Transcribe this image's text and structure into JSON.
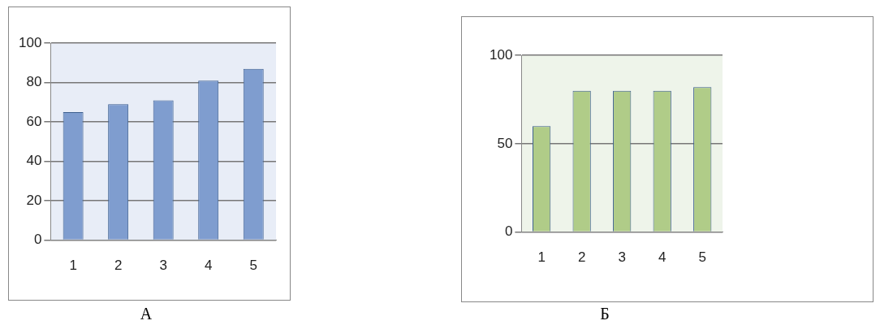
{
  "chart_data": [
    {
      "type": "bar",
      "title": "А",
      "categories": [
        "1",
        "2",
        "3",
        "4",
        "5"
      ],
      "values": [
        65,
        69,
        71,
        81,
        87
      ],
      "color": "#7f9dcf",
      "ylim": [
        0,
        100
      ],
      "yticks": [
        0,
        20,
        40,
        60,
        80,
        100
      ],
      "grid": "y"
    },
    {
      "type": "bar",
      "title": "Б",
      "categories": [
        "1",
        "2",
        "3",
        "4",
        "5"
      ],
      "values": [
        60,
        80,
        80,
        80,
        82
      ],
      "color": "#b0cc88",
      "ylim": [
        0,
        100
      ],
      "yticks": [
        0,
        50,
        100
      ],
      "grid": "y"
    }
  ]
}
